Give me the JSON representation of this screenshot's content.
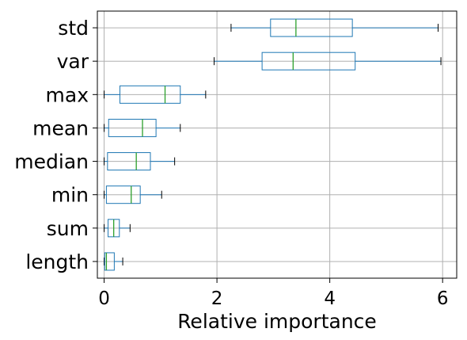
{
  "chart_data": {
    "type": "boxplot",
    "orientation": "horizontal",
    "title": "",
    "xlabel": "Relative importance",
    "ylabel": "",
    "xlim": [
      -0.12,
      6.25
    ],
    "xticks": [
      0,
      2,
      4,
      6
    ],
    "xtick_labels": [
      "0",
      "2",
      "4",
      "6"
    ],
    "grid": true,
    "colors": {
      "box": "#1f77b4",
      "median": "#2ca02c",
      "whisker_cap": "#000000",
      "grid": "#b0b0b0"
    },
    "categories": [
      "std",
      "var",
      "max",
      "mean",
      "median",
      "min",
      "sum",
      "length"
    ],
    "boxes": [
      {
        "label": "std",
        "whislo": 2.25,
        "q1": 2.95,
        "med": 3.4,
        "q3": 4.4,
        "whishi": 5.92
      },
      {
        "label": "var",
        "whislo": 1.95,
        "q1": 2.8,
        "med": 3.35,
        "q3": 4.45,
        "whishi": 5.97
      },
      {
        "label": "max",
        "whislo": 0.0,
        "q1": 0.28,
        "med": 1.08,
        "q3": 1.35,
        "whishi": 1.8
      },
      {
        "label": "mean",
        "whislo": 0.0,
        "q1": 0.08,
        "med": 0.68,
        "q3": 0.92,
        "whishi": 1.35
      },
      {
        "label": "median",
        "whislo": 0.0,
        "q1": 0.06,
        "med": 0.57,
        "q3": 0.82,
        "whishi": 1.25
      },
      {
        "label": "min",
        "whislo": 0.0,
        "q1": 0.04,
        "med": 0.48,
        "q3": 0.64,
        "whishi": 1.02
      },
      {
        "label": "sum",
        "whislo": 0.0,
        "q1": 0.07,
        "med": 0.17,
        "q3": 0.27,
        "whishi": 0.46
      },
      {
        "label": "length",
        "whislo": 0.0,
        "q1": 0.01,
        "med": 0.04,
        "q3": 0.18,
        "whishi": 0.33
      }
    ]
  }
}
